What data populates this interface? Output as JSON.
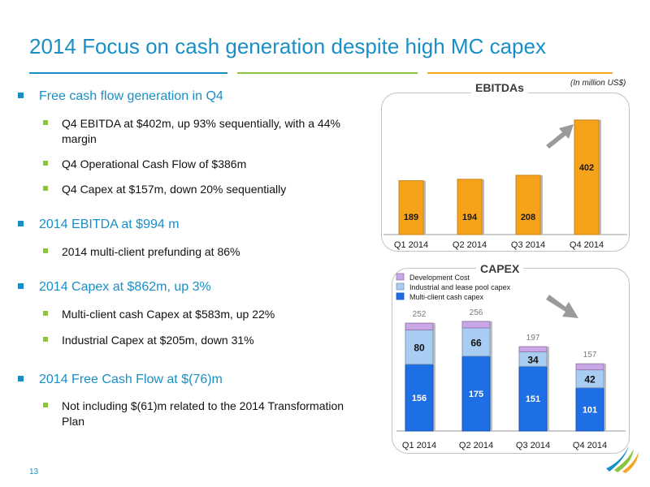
{
  "slide": {
    "title": "2014 Focus on cash generation despite high MC capex",
    "unit_note": "(In million US$)",
    "page_number": "13",
    "accent_colors": [
      "#1a8fc6",
      "#8bc53f",
      "#f5a623"
    ]
  },
  "bullets": [
    {
      "level": 1,
      "text": "Free cash flow generation in Q4"
    },
    {
      "level": 2,
      "text": "Q4 EBITDA at $402m, up 93% sequentially, with a 44% margin"
    },
    {
      "level": 2,
      "text": "Q4 Operational Cash Flow of $386m"
    },
    {
      "level": 2,
      "text": "Q4 Capex at $157m, down 20% sequentially"
    },
    {
      "level": 1,
      "text": "2014 EBITDA at $994 m"
    },
    {
      "level": 2,
      "text": "2014 multi-client prefunding at 86%"
    },
    {
      "level": 1,
      "text": "2014 Capex at $862m, up 3%"
    },
    {
      "level": 2,
      "text": "Multi-client cash Capex at $583m, up 22%"
    },
    {
      "level": 2,
      "text": "Industrial Capex at $205m, down 31%"
    },
    {
      "level": 1,
      "text": "2014 Free Cash Flow at $(76)m"
    },
    {
      "level": 2,
      "text": "Not including $(61)m related to the 2014 Transformation Plan"
    }
  ],
  "chart_data": [
    {
      "type": "bar",
      "title": "EBITDAs",
      "categories": [
        "Q1 2014",
        "Q2 2014",
        "Q3 2014",
        "Q4 2014"
      ],
      "values": [
        189,
        194,
        208,
        402
      ],
      "ylim": [
        0,
        450
      ],
      "color": "#f7a21b",
      "grid": false,
      "legend": "none",
      "trend_arrow": "up"
    },
    {
      "type": "bar",
      "stacked": true,
      "title": "CAPEX",
      "categories": [
        "Q1 2014",
        "Q2 2014",
        "Q3 2014",
        "Q4 2014"
      ],
      "series": [
        {
          "name": "Multi-client cash capex",
          "values": [
            156,
            175,
            151,
            101
          ],
          "color": "#1e6ee6"
        },
        {
          "name": "Industrial and lease pool capex",
          "values": [
            80,
            66,
            34,
            42
          ],
          "color": "#a9cdf2"
        },
        {
          "name": "Development Cost",
          "values": [
            16,
            15,
            12,
            14
          ],
          "color": "#c9a7e6"
        }
      ],
      "totals": [
        252,
        256,
        197,
        157
      ],
      "ylim": [
        0,
        270
      ],
      "grid": false,
      "legend": "top-left",
      "trend_arrow": "down"
    }
  ]
}
